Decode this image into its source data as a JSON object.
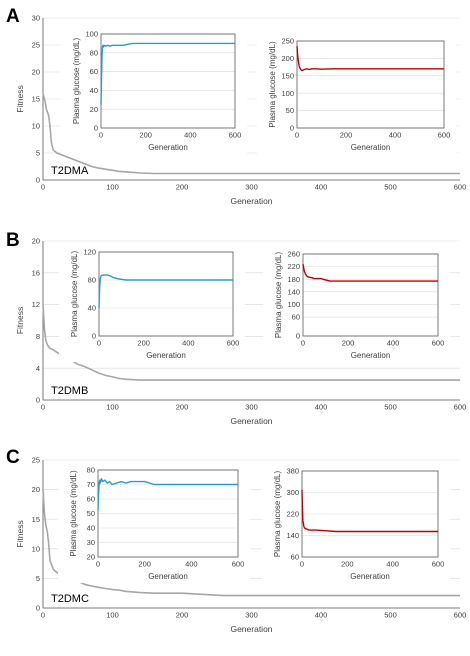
{
  "chart_data": [
    {
      "type": "line",
      "panel_letter": "A",
      "label": "T2DMA",
      "xlabel": "Generation",
      "ylabel": "Fitness",
      "xlim": [
        0,
        600
      ],
      "ylim": [
        0,
        30
      ],
      "xticks": [
        0,
        100,
        200,
        300,
        400,
        500,
        600
      ],
      "yticks": [
        0,
        5,
        10,
        15,
        20,
        25,
        30
      ],
      "series": [
        {
          "color": "#a6a6a6",
          "x": [
            0,
            3,
            5,
            8,
            10,
            12,
            15,
            20,
            30,
            40,
            50,
            60,
            70,
            80,
            90,
            100,
            110,
            120,
            140,
            160,
            200,
            300,
            400,
            500,
            600
          ],
          "y": [
            16,
            14.5,
            13,
            12,
            10,
            7,
            5.5,
            5.0,
            4.5,
            4.0,
            3.5,
            3.0,
            2.5,
            2.2,
            2.0,
            1.8,
            1.6,
            1.5,
            1.3,
            1.2,
            1.2,
            1.2,
            1.2,
            1.2,
            1.2
          ]
        }
      ],
      "insets": [
        {
          "xlabel": "Generation",
          "ylabel": "Plasma glucose (mg/dL)",
          "xlim": [
            0,
            600
          ],
          "ylim": [
            0,
            100
          ],
          "xticks": [
            0,
            200,
            400,
            600
          ],
          "yticks": [
            0,
            20,
            40,
            60,
            80,
            100
          ],
          "color": "#2b9bd3",
          "x": [
            0,
            2,
            4,
            6,
            8,
            10,
            15,
            20,
            30,
            40,
            50,
            60,
            80,
            100,
            120,
            140,
            160,
            200,
            300,
            400,
            500,
            600
          ],
          "y": [
            25,
            45,
            70,
            85,
            88,
            86,
            88,
            87,
            88,
            87,
            88,
            88,
            88,
            88,
            89,
            90,
            90,
            90,
            90,
            90,
            90,
            90
          ]
        },
        {
          "xlabel": "Generation",
          "ylabel": "Plasma glucose (mg/dL)",
          "xlim": [
            0,
            600
          ],
          "ylim": [
            0,
            250
          ],
          "xticks": [
            0,
            200,
            400,
            600
          ],
          "yticks": [
            0,
            50,
            100,
            150,
            200,
            250
          ],
          "color": "#c00000",
          "x": [
            0,
            2,
            4,
            6,
            8,
            10,
            15,
            20,
            30,
            40,
            50,
            60,
            80,
            100,
            150,
            200,
            300,
            400,
            500,
            600
          ],
          "y": [
            235,
            215,
            200,
            190,
            180,
            175,
            168,
            165,
            168,
            170,
            168,
            170,
            170,
            169,
            170,
            170,
            170,
            170,
            170,
            170
          ]
        }
      ]
    },
    {
      "type": "line",
      "panel_letter": "B",
      "label": "T2DMB",
      "xlabel": "Generation",
      "ylabel": "Fitness",
      "xlim": [
        0,
        600
      ],
      "ylim": [
        0,
        20
      ],
      "xticks": [
        0,
        100,
        200,
        300,
        400,
        500,
        600
      ],
      "yticks": [
        0,
        4,
        8,
        12,
        16,
        20
      ],
      "series": [
        {
          "color": "#a6a6a6",
          "x": [
            0,
            2,
            4,
            6,
            8,
            10,
            15,
            20,
            30,
            40,
            50,
            60,
            70,
            80,
            90,
            100,
            110,
            120,
            140,
            200,
            300,
            400,
            500,
            600
          ],
          "y": [
            12,
            9,
            7.5,
            7,
            6.7,
            6.5,
            6.3,
            6.0,
            5.5,
            5.0,
            4.5,
            4.2,
            3.8,
            3.4,
            3.1,
            2.9,
            2.7,
            2.6,
            2.5,
            2.5,
            2.5,
            2.5,
            2.5,
            2.5
          ]
        }
      ],
      "insets": [
        {
          "xlabel": "Generation",
          "ylabel": "Plasma glucose (mg/dL)",
          "xlim": [
            0,
            600
          ],
          "ylim": [
            0,
            120
          ],
          "xticks": [
            0,
            200,
            400,
            600
          ],
          "yticks": [
            0,
            40,
            80,
            120
          ],
          "color": "#2b9bd3",
          "x": [
            0,
            3,
            6,
            10,
            15,
            20,
            30,
            40,
            50,
            60,
            70,
            80,
            100,
            120,
            150,
            200,
            300,
            400,
            500,
            600
          ],
          "y": [
            40,
            70,
            82,
            86,
            87,
            87,
            87,
            87,
            86,
            84,
            83,
            82,
            81,
            80,
            80,
            80,
            80,
            80,
            80,
            80
          ]
        },
        {
          "xlabel": "Generation",
          "ylabel": "Plasma glucose (mg/dL)",
          "xlim": [
            0,
            600
          ],
          "ylim": [
            0,
            260
          ],
          "xticks": [
            0,
            200,
            400,
            600
          ],
          "yticks": [
            0,
            60,
            100,
            140,
            180,
            220,
            260
          ],
          "ytick_labels": [
            "0",
            "60",
            "100",
            "140",
            "180",
            "220",
            "260"
          ],
          "yaxis_mode": "custom",
          "color": "#c00000",
          "x": [
            0,
            3,
            6,
            10,
            15,
            20,
            30,
            40,
            50,
            60,
            80,
            100,
            120,
            150,
            200,
            300,
            400,
            500,
            600
          ],
          "y": [
            228,
            215,
            205,
            198,
            192,
            188,
            186,
            185,
            182,
            182,
            182,
            178,
            174,
            174,
            174,
            174,
            174,
            174,
            174
          ]
        }
      ]
    },
    {
      "type": "line",
      "panel_letter": "C",
      "label": "T2DMC",
      "xlabel": "Generation",
      "ylabel": "Fitness",
      "xlim": [
        0,
        600
      ],
      "ylim": [
        0,
        25
      ],
      "xticks": [
        0,
        100,
        200,
        300,
        400,
        500,
        600
      ],
      "yticks": [
        0,
        5,
        10,
        15,
        20,
        25
      ],
      "series": [
        {
          "color": "#a6a6a6",
          "x": [
            0,
            2,
            4,
            6,
            8,
            10,
            15,
            20,
            30,
            40,
            50,
            60,
            70,
            80,
            90,
            100,
            110,
            120,
            140,
            160,
            200,
            260,
            300,
            400,
            500,
            600
          ],
          "y": [
            20,
            16,
            14,
            13,
            11,
            8,
            6.5,
            6.0,
            5.3,
            5.0,
            4.5,
            4.0,
            3.7,
            3.5,
            3.3,
            3.1,
            3.0,
            2.8,
            2.6,
            2.5,
            2.5,
            2.1,
            2.1,
            2.1,
            2.1,
            2.1
          ]
        }
      ],
      "insets": [
        {
          "xlabel": "Generation",
          "ylabel": "Plasma glucose (mg/dL)",
          "xlim": [
            0,
            600
          ],
          "ylim": [
            20,
            80
          ],
          "xticks": [
            0,
            200,
            400,
            600
          ],
          "yticks": [
            20,
            30,
            40,
            50,
            60,
            70,
            80
          ],
          "color": "#2b9bd3",
          "x": [
            0,
            2,
            4,
            6,
            8,
            10,
            15,
            20,
            30,
            40,
            50,
            60,
            80,
            100,
            120,
            140,
            200,
            240,
            300,
            400,
            500,
            600
          ],
          "y": [
            52,
            62,
            68,
            72,
            73,
            71,
            74,
            72,
            73,
            71,
            72,
            70,
            71,
            72,
            71,
            72,
            72,
            70,
            70,
            70,
            70,
            70
          ]
        },
        {
          "xlabel": "Generation",
          "ylabel": "Plasma glucose (mg/dL)",
          "xlim": [
            0,
            600
          ],
          "ylim": [
            60,
            380
          ],
          "xticks": [
            0,
            200,
            400,
            600
          ],
          "yticks": [
            60,
            140,
            220,
            300,
            380
          ],
          "color": "#c00000",
          "x": [
            0,
            2,
            4,
            6,
            8,
            10,
            15,
            20,
            30,
            40,
            50,
            60,
            100,
            150,
            200,
            300,
            400,
            500,
            600
          ],
          "y": [
            310,
            230,
            195,
            185,
            175,
            170,
            165,
            165,
            160,
            160,
            160,
            160,
            158,
            155,
            155,
            155,
            155,
            155,
            155
          ]
        }
      ]
    }
  ]
}
